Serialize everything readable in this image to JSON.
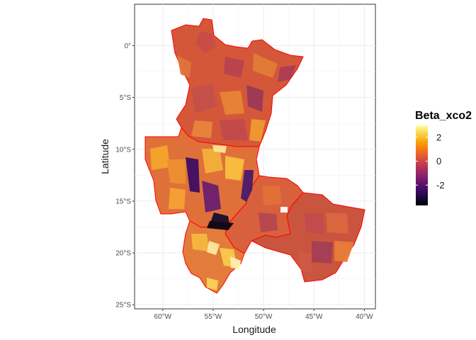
{
  "chart_data": {
    "type": "choropleth",
    "xlabel": "Longitude",
    "ylabel": "Latitude",
    "x_ticks": [
      {
        "value": -60,
        "label": "60°W"
      },
      {
        "value": -55,
        "label": "55°W"
      },
      {
        "value": -50,
        "label": "50°W"
      },
      {
        "value": -45,
        "label": "45°W"
      },
      {
        "value": -40,
        "label": "40°W"
      }
    ],
    "y_ticks": [
      {
        "value": 0,
        "label": "0°"
      },
      {
        "value": -5,
        "label": "5°S"
      },
      {
        "value": -10,
        "label": "10°S"
      },
      {
        "value": -15,
        "label": "15°S"
      },
      {
        "value": -20,
        "label": "20°S"
      },
      {
        "value": -25,
        "label": "25°S"
      }
    ],
    "xlim": [
      -62.8,
      -38.9
    ],
    "ylim": [
      -25.4,
      4.0
    ],
    "grid": true,
    "legend": {
      "title": "Beta_xco2",
      "placement": "right",
      "ticks": [
        {
          "value": 2,
          "label": "2"
        },
        {
          "value": 0,
          "label": "0"
        },
        {
          "value": -2,
          "label": "-2"
        }
      ],
      "range": [
        -3.7,
        3.0
      ],
      "palette": [
        "#000004",
        "#1b0c41",
        "#4a0c6b",
        "#781c6d",
        "#a52c60",
        "#cf4446",
        "#ed6925",
        "#fb9b06",
        "#f7d13d",
        "#fcffa4"
      ]
    },
    "border_color": "#ff0000"
  }
}
